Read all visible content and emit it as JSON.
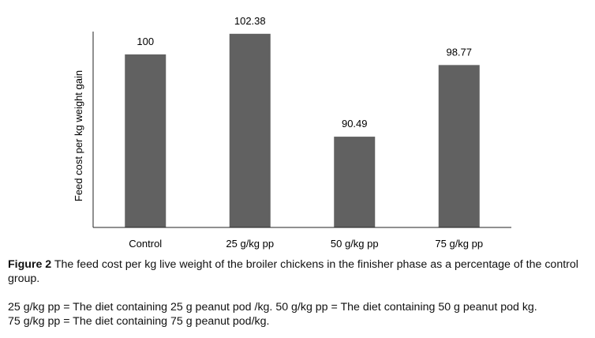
{
  "chart_data": {
    "type": "bar",
    "categories": [
      "Control",
      "25 g/kg pp",
      "50 g/kg pp",
      "75 g/kg pp"
    ],
    "values": [
      100,
      102.38,
      90.49,
      98.77
    ],
    "value_labels": [
      "100",
      "102.38",
      "90.49",
      "98.77"
    ],
    "ylabel": "Feed cost per kg weight gain",
    "xlabel": "",
    "ylim": [
      80,
      103
    ],
    "grid": false,
    "bar_color": "#616161"
  },
  "caption": {
    "label": "Figure 2",
    "text": " The feed cost per kg live weight of the broiler chickens in the finisher phase as a percentage of the control group."
  },
  "notes": [
    "25 g/kg pp = The diet containing 25 g peanut pod /kg. 50 g/kg pp = The diet containing 50 g peanut pod kg.",
    "75 g/kg pp = The diet containing 75 g peanut pod/kg."
  ]
}
